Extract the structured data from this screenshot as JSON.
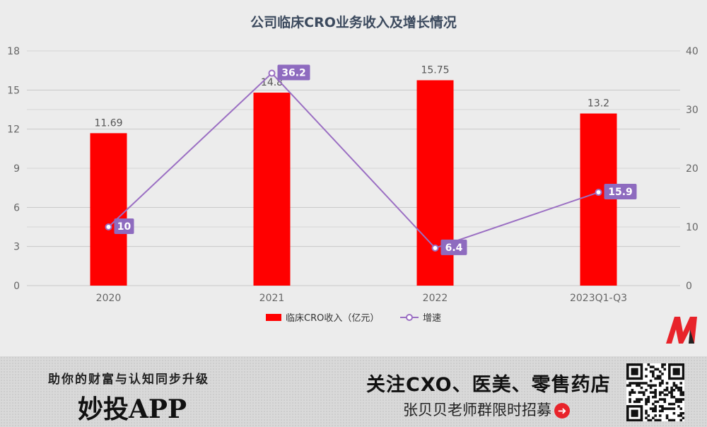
{
  "chart_data": {
    "type": "bar",
    "title": "公司临床CRO业务收入及增长情况",
    "categories": [
      "2020",
      "2021",
      "2022",
      "2023Q1-Q3"
    ],
    "series": [
      {
        "name": "临床CRO收入（亿元）",
        "type": "bar",
        "axis": "left",
        "color": "#ff0000",
        "values": [
          11.69,
          14.8,
          15.75,
          13.2
        ]
      },
      {
        "name": "增速",
        "type": "line",
        "axis": "right",
        "color": "#9b6fc3",
        "values": [
          10,
          36.2,
          6.4,
          15.9
        ]
      }
    ],
    "y_left": {
      "ylim": [
        0,
        18
      ],
      "ticks": [
        "0",
        "3",
        "6",
        "9",
        "12",
        "15",
        "18"
      ]
    },
    "y_right": {
      "ylim": [
        0,
        40
      ],
      "ticks": [
        "0",
        "10",
        "20",
        "30",
        "40"
      ]
    },
    "grid": true,
    "legend": "bottom"
  },
  "footer": {
    "tagline": "助你的财富与认知同步升级",
    "app_name": "妙投APP",
    "headline": "关注CXO、医美、零售药店",
    "subline": "张贝贝老师群限时招募"
  },
  "colors": {
    "bar": "#ff0000",
    "line": "#9b6fc3",
    "logo": "#e8232a"
  },
  "icons": {
    "arrow": "arrow-right-circle-icon",
    "logo": "miaotou-logo-icon",
    "qr": "qr-code-icon"
  }
}
